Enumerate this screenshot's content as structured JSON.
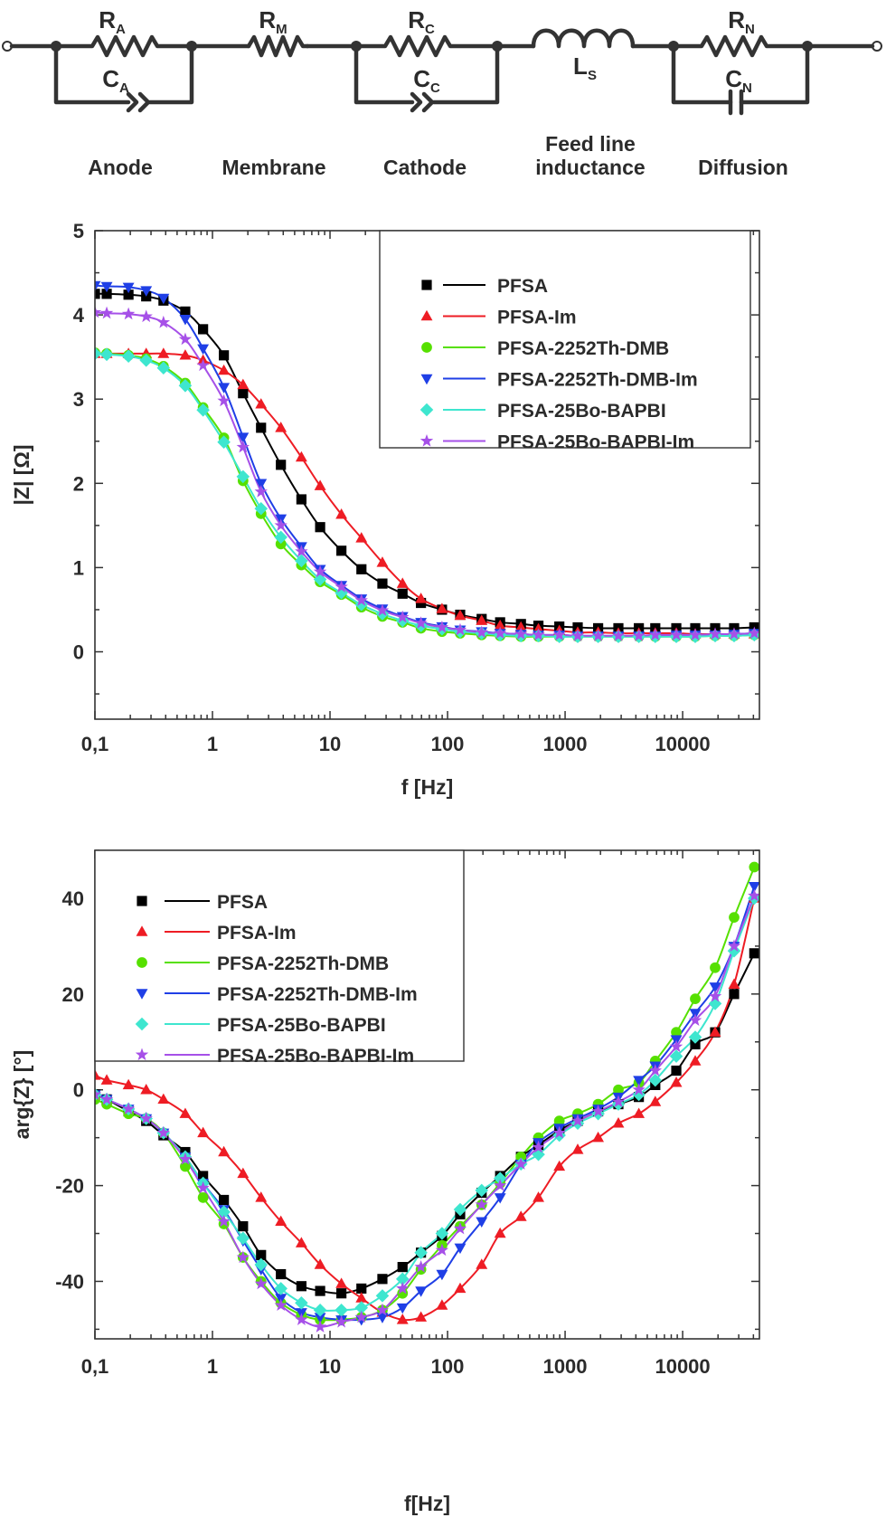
{
  "circuit": {
    "components": [
      {
        "symbol": "R",
        "sub": "A"
      },
      {
        "symbol": "C",
        "sub": "A"
      },
      {
        "symbol": "R",
        "sub": "M"
      },
      {
        "symbol": "R",
        "sub": "C"
      },
      {
        "symbol": "C",
        "sub": "C"
      },
      {
        "symbol": "L",
        "sub": "S"
      },
      {
        "symbol": "R",
        "sub": "N"
      },
      {
        "symbol": "C",
        "sub": "N"
      }
    ],
    "labels": {
      "anode": "Anode",
      "membrane": "Membrane",
      "cathode": "Cathode",
      "feed_line_1": "Feed line",
      "feed_line_2": "inductance",
      "diffusion": "Diffusion"
    }
  },
  "colors": {
    "PFSA": "#000000",
    "PFSA-Im": "#ee1c24",
    "PFSA-2252Th-DMB": "#56e000",
    "PFSA-2252Th-DMB-Im": "#1f3fe6",
    "PFSA-25Bo-BAPBI": "#3ee6cf",
    "PFSA-25Bo-BAPBI-Im": "#a650e8",
    "axis": "#333333"
  },
  "chart_data": [
    {
      "type": "line",
      "xscale": "log",
      "xlabel": "f [Hz]",
      "ylabel": "|Z| [Ω]",
      "xlim": [
        0.1,
        45000
      ],
      "ylim": [
        -0.8,
        5
      ],
      "xticks": [
        0.1,
        1,
        10,
        100,
        1000,
        10000
      ],
      "xtick_labels": [
        "0,1",
        "1",
        "10",
        "100",
        "1000",
        "10000"
      ],
      "yticks": [
        0,
        1,
        2,
        3,
        4,
        5
      ],
      "ytick_labels": [
        "0",
        "1",
        "2",
        "3",
        "4",
        "5"
      ],
      "legend": {
        "position": "top-right",
        "style": "symbol-and-line"
      },
      "x": [
        0.1,
        0.126,
        0.193,
        0.273,
        0.383,
        0.587,
        0.832,
        1.25,
        1.82,
        2.59,
        3.82,
        5.71,
        8.24,
        12.5,
        18.5,
        27.9,
        41.4,
        59.4,
        89.7,
        128,
        195,
        280,
        421,
        593,
        893,
        1280,
        1910,
        2840,
        4240,
        5850,
        8830,
        12800,
        18900,
        27400,
        40700
      ],
      "series": [
        {
          "name": "PFSA",
          "marker": "square",
          "values": [
            4.25,
            4.25,
            4.24,
            4.22,
            4.17,
            4.04,
            3.83,
            3.52,
            3.07,
            2.66,
            2.22,
            1.81,
            1.48,
            1.2,
            0.98,
            0.81,
            0.69,
            0.58,
            0.5,
            0.44,
            0.39,
            0.35,
            0.33,
            0.31,
            0.3,
            0.29,
            0.28,
            0.28,
            0.28,
            0.28,
            0.28,
            0.28,
            0.28,
            0.28,
            0.29
          ]
        },
        {
          "name": "PFSA-Im",
          "marker": "triangle-up",
          "values": [
            3.54,
            3.54,
            3.54,
            3.54,
            3.54,
            3.52,
            3.46,
            3.34,
            3.17,
            2.94,
            2.66,
            2.31,
            1.97,
            1.63,
            1.35,
            1.06,
            0.81,
            0.63,
            0.51,
            0.43,
            0.37,
            0.31,
            0.29,
            0.27,
            0.25,
            0.23,
            0.23,
            0.22,
            0.22,
            0.22,
            0.22,
            0.21,
            0.21,
            0.21,
            0.21
          ]
        },
        {
          "name": "PFSA-2252Th-DMB",
          "marker": "circle",
          "values": [
            3.55,
            3.54,
            3.52,
            3.48,
            3.39,
            3.19,
            2.9,
            2.54,
            2.03,
            1.64,
            1.28,
            1.03,
            0.83,
            0.68,
            0.53,
            0.42,
            0.35,
            0.28,
            0.24,
            0.22,
            0.2,
            0.19,
            0.18,
            0.18,
            0.18,
            0.18,
            0.18,
            0.18,
            0.18,
            0.18,
            0.18,
            0.18,
            0.19,
            0.19,
            0.2
          ]
        },
        {
          "name": "PFSA-2252Th-DMB-Im",
          "marker": "triangle-down",
          "values": [
            4.35,
            4.34,
            4.33,
            4.29,
            4.2,
            3.95,
            3.6,
            3.14,
            2.55,
            2.0,
            1.58,
            1.25,
            0.98,
            0.79,
            0.63,
            0.51,
            0.42,
            0.35,
            0.3,
            0.26,
            0.24,
            0.22,
            0.21,
            0.2,
            0.2,
            0.19,
            0.19,
            0.19,
            0.19,
            0.19,
            0.2,
            0.2,
            0.2,
            0.21,
            0.22
          ]
        },
        {
          "name": "PFSA-25Bo-BAPBI",
          "marker": "diamond",
          "values": [
            3.54,
            3.53,
            3.51,
            3.46,
            3.37,
            3.16,
            2.87,
            2.49,
            2.08,
            1.7,
            1.36,
            1.08,
            0.86,
            0.7,
            0.56,
            0.45,
            0.37,
            0.31,
            0.27,
            0.24,
            0.22,
            0.2,
            0.19,
            0.19,
            0.18,
            0.18,
            0.18,
            0.18,
            0.18,
            0.18,
            0.18,
            0.18,
            0.19,
            0.19,
            0.2
          ]
        },
        {
          "name": "PFSA-25Bo-BAPBI-Im",
          "marker": "star",
          "values": [
            4.03,
            4.02,
            4.01,
            3.98,
            3.91,
            3.71,
            3.4,
            2.98,
            2.43,
            1.9,
            1.5,
            1.19,
            0.95,
            0.77,
            0.61,
            0.49,
            0.41,
            0.34,
            0.29,
            0.26,
            0.23,
            0.22,
            0.21,
            0.2,
            0.2,
            0.19,
            0.19,
            0.19,
            0.19,
            0.2,
            0.2,
            0.2,
            0.21,
            0.21,
            0.22
          ]
        }
      ]
    },
    {
      "type": "line",
      "xscale": "log",
      "xlabel": "f[Hz]",
      "ylabel": "arg{Z} [°]",
      "xlim": [
        0.1,
        45000
      ],
      "ylim": [
        -52,
        50
      ],
      "xticks": [
        0.1,
        1,
        10,
        100,
        1000,
        10000
      ],
      "xtick_labels": [
        "0,1",
        "1",
        "10",
        "100",
        "1000",
        "10000"
      ],
      "yticks": [
        -40,
        -20,
        0,
        20,
        40
      ],
      "ytick_labels": [
        "-40",
        "-20",
        "0",
        "20",
        "40"
      ],
      "legend": {
        "position": "top-left",
        "style": "symbol-and-line"
      },
      "x": [
        0.1,
        0.126,
        0.193,
        0.273,
        0.383,
        0.587,
        0.832,
        1.25,
        1.82,
        2.59,
        3.82,
        5.71,
        8.24,
        12.5,
        18.5,
        27.9,
        41.4,
        59.4,
        89.7,
        128,
        195,
        280,
        421,
        593,
        893,
        1280,
        1910,
        2840,
        4240,
        5850,
        8830,
        12800,
        18900,
        27400,
        40700
      ],
      "series": [
        {
          "name": "PFSA",
          "marker": "square",
          "values": [
            -1.0,
            -2.0,
            -4.5,
            -6.5,
            -9.5,
            -13.0,
            -18.0,
            -23.0,
            -28.5,
            -34.5,
            -38.5,
            -41.0,
            -42.0,
            -42.5,
            -41.5,
            -39.5,
            -37.0,
            -34.0,
            -30.5,
            -26.0,
            -21.5,
            -18.0,
            -14.0,
            -11.5,
            -8.5,
            -6.5,
            -4.5,
            -3.0,
            -1.5,
            1.0,
            4.0,
            9.5,
            12.0,
            20.0,
            28.5
          ]
        },
        {
          "name": "PFSA-Im",
          "marker": "triangle-up",
          "values": [
            3.0,
            2.0,
            1.0,
            0.0,
            -2.0,
            -5.0,
            -9.0,
            -13.0,
            -17.5,
            -22.5,
            -27.5,
            -32.0,
            -36.5,
            -40.5,
            -43.5,
            -46.5,
            -48.0,
            -47.5,
            -45.0,
            -41.5,
            -36.5,
            -30.0,
            -26.5,
            -22.5,
            -16.0,
            -12.5,
            -10.0,
            -7.0,
            -5.0,
            -2.5,
            1.5,
            6.0,
            12.0,
            22.0,
            40.0
          ]
        },
        {
          "name": "PFSA-2252Th-DMB",
          "marker": "circle",
          "values": [
            -2.0,
            -3.0,
            -5.0,
            -6.0,
            -9.0,
            -16.0,
            -22.5,
            -28.0,
            -35.0,
            -40.0,
            -44.5,
            -47.0,
            -48.0,
            -48.0,
            -47.5,
            -46.0,
            -42.5,
            -37.5,
            -32.5,
            -28.5,
            -24.0,
            -19.5,
            -14.0,
            -10.0,
            -6.5,
            -5.0,
            -3.0,
            0.0,
            1.5,
            6.0,
            12.0,
            19.0,
            25.5,
            36.0,
            46.5
          ]
        },
        {
          "name": "PFSA-2252Th-DMB-Im",
          "marker": "triangle-down",
          "values": [
            -1.0,
            -2.0,
            -4.0,
            -6.0,
            -9.0,
            -14.0,
            -19.5,
            -25.0,
            -31.5,
            -37.5,
            -43.5,
            -46.5,
            -47.5,
            -48.0,
            -48.0,
            -47.5,
            -45.5,
            -42.0,
            -38.5,
            -33.0,
            -27.5,
            -22.5,
            -15.5,
            -11.0,
            -8.0,
            -6.0,
            -4.0,
            -1.5,
            2.0,
            5.0,
            10.5,
            16.0,
            21.5,
            30.0,
            42.5
          ]
        },
        {
          "name": "PFSA-25Bo-BAPBI",
          "marker": "diamond",
          "values": [
            -1.0,
            -2.0,
            -4.0,
            -6.0,
            -9.0,
            -14.0,
            -19.5,
            -25.5,
            -31.0,
            -36.5,
            -41.5,
            -44.5,
            -46.0,
            -46.0,
            -45.5,
            -43.0,
            -39.5,
            -34.0,
            -30.0,
            -25.0,
            -21.0,
            -18.5,
            -15.5,
            -13.5,
            -9.5,
            -7.0,
            -5.0,
            -3.0,
            -1.0,
            2.0,
            7.0,
            11.0,
            18.0,
            29.0,
            40.0
          ]
        },
        {
          "name": "PFSA-25Bo-BAPBI-Im",
          "marker": "star",
          "values": [
            -1.0,
            -2.0,
            -4.0,
            -6.0,
            -9.0,
            -14.5,
            -20.5,
            -27.5,
            -35.0,
            -40.5,
            -45.0,
            -48.0,
            -49.5,
            -48.5,
            -47.5,
            -46.0,
            -41.5,
            -37.0,
            -33.5,
            -29.0,
            -24.0,
            -20.0,
            -15.5,
            -12.0,
            -9.0,
            -6.5,
            -4.5,
            -2.5,
            0.0,
            4.0,
            9.0,
            14.5,
            19.5,
            30.0,
            40.5
          ]
        }
      ]
    }
  ]
}
